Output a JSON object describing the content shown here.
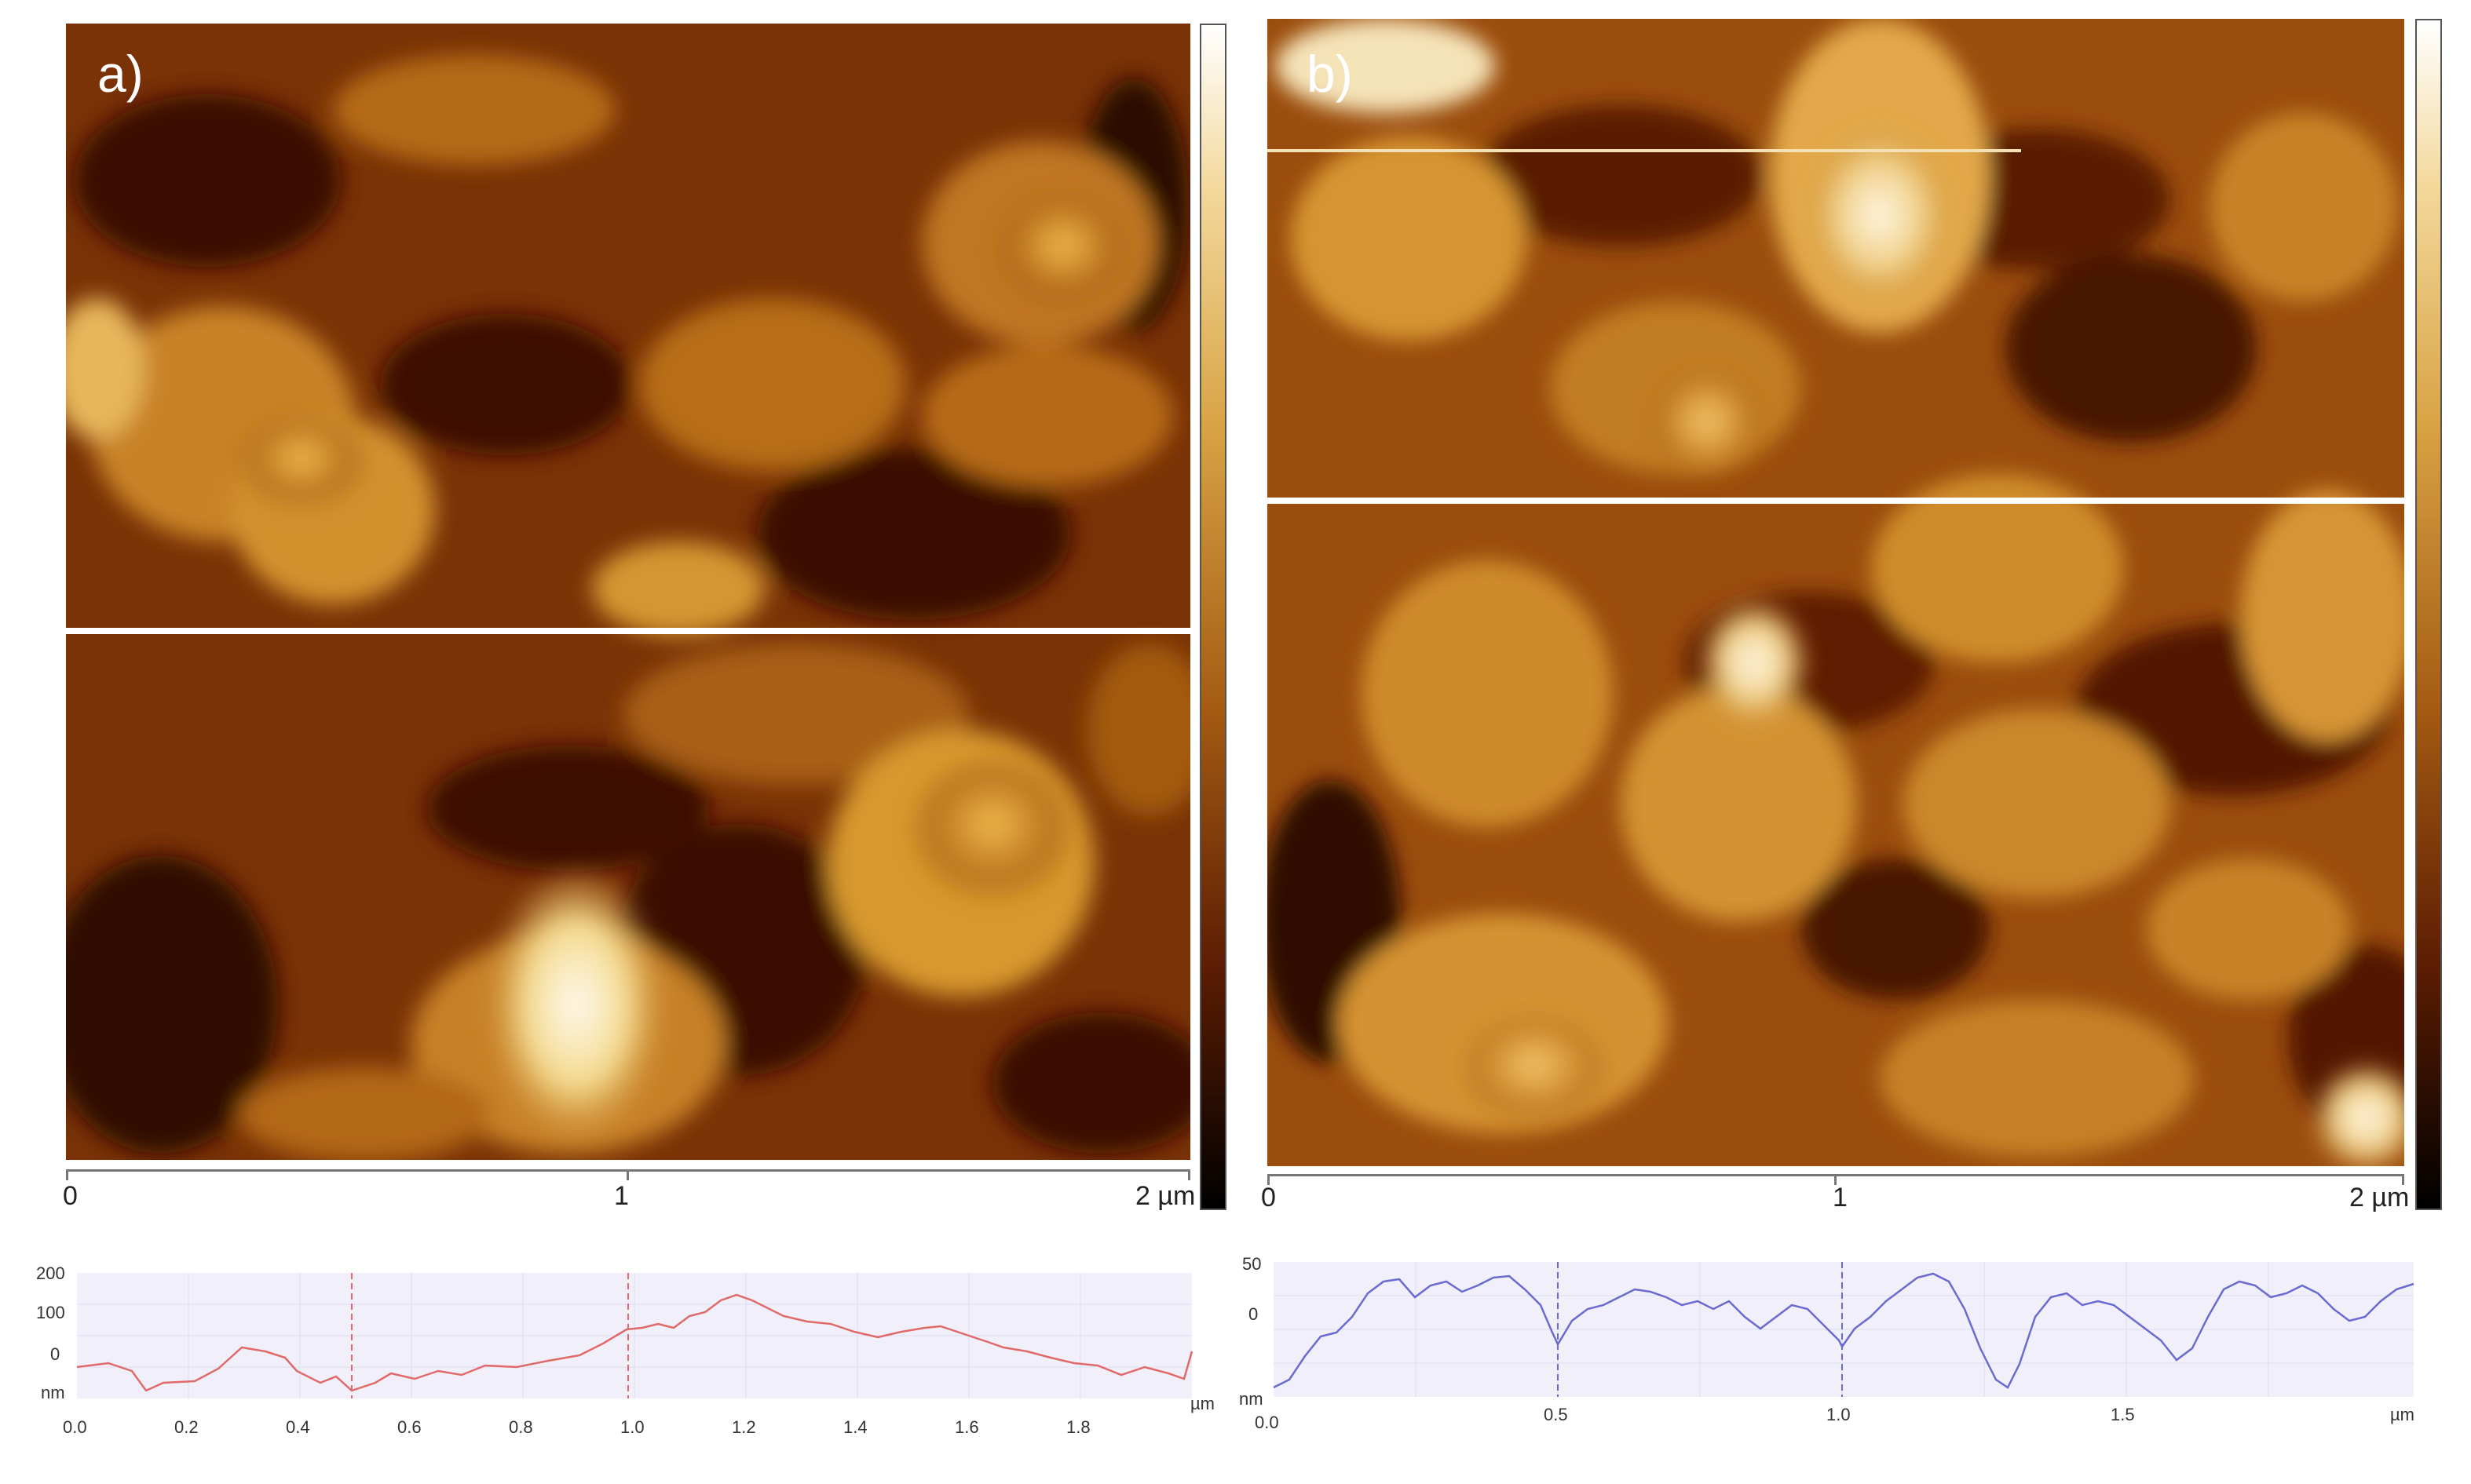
{
  "panels": [
    {
      "label": "a)",
      "scale": {
        "start": "0",
        "mid": "1",
        "end": "2 µm"
      },
      "profile": {
        "y_ticks": [
          "200",
          "100",
          "0",
          "nm"
        ],
        "x_ticks": [
          "0.0",
          "0.2",
          "0.4",
          "0.6",
          "0.8",
          "1.0",
          "1.2",
          "1.4",
          "1.6",
          "1.8"
        ],
        "x_unit": "µm",
        "line_color": "#e06a6a",
        "markers_um": [
          0.5,
          1.0
        ]
      }
    },
    {
      "label": "b)",
      "scale": {
        "start": "0",
        "mid": "1",
        "end": "2 µm"
      },
      "profile": {
        "y_ticks": [
          "50",
          "0",
          "nm"
        ],
        "x_ticks": [
          "0.0",
          "0.5",
          "1.0",
          "1.5"
        ],
        "x_unit": "µm",
        "line_color": "#6a6ad0",
        "markers_um": [
          0.5,
          1.0
        ]
      }
    }
  ],
  "colors": {
    "afm_dark": "#2a0800",
    "afm_mid": "#a0500a",
    "afm_light": "#f2c65a",
    "afm_peak": "#fff6dc",
    "profile_bg": "#f1f0fa",
    "profile_grid": "#dcdcf0"
  }
}
